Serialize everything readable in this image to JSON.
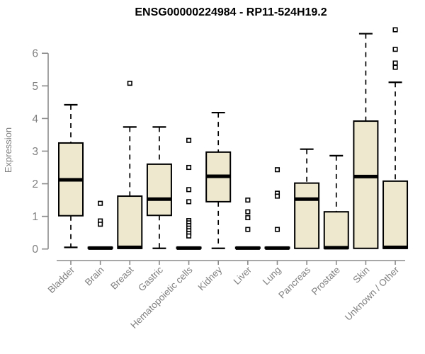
{
  "title": "ENSG00000224984 - RP11-524H19.2",
  "chart_data": {
    "type": "boxplot",
    "title": "ENSG00000224984 - RP11-524H19.2",
    "xlabel": "",
    "ylabel": "Expression",
    "ylim": [
      0,
      6.8
    ],
    "yticks": [
      0,
      1,
      2,
      3,
      4,
      5,
      6
    ],
    "grid": false,
    "legend": "none",
    "categories": [
      "Bladder",
      "Brain",
      "Breast",
      "Gastric",
      "Hematopoietic cells",
      "Kidney",
      "Liver",
      "Lung",
      "Pancreas",
      "Prostate",
      "Skin",
      "Unknown / Other"
    ],
    "boxes": [
      {
        "category": "Bladder",
        "low": 0.05,
        "q1": 1.02,
        "median": 2.12,
        "q3": 3.25,
        "high": 4.42,
        "outliers": []
      },
      {
        "category": "Brain",
        "low": 0.02,
        "q1": 0.02,
        "median": 0.03,
        "q3": 0.05,
        "high": 0.05,
        "outliers": [
          1.4,
          0.86,
          0.76
        ]
      },
      {
        "category": "Breast",
        "low": 0.02,
        "q1": 0.02,
        "median": 0.05,
        "q3": 1.62,
        "high": 3.74,
        "outliers": [
          5.08
        ]
      },
      {
        "category": "Gastric",
        "low": 0.02,
        "q1": 1.03,
        "median": 1.53,
        "q3": 2.6,
        "high": 3.74,
        "outliers": []
      },
      {
        "category": "Hematopoietic cells",
        "low": 0.02,
        "q1": 0.02,
        "median": 0.03,
        "q3": 0.05,
        "high": 0.05,
        "outliers": [
          3.33,
          2.5,
          1.82,
          1.45,
          0.87,
          0.8,
          0.72,
          0.64,
          0.56,
          0.48,
          0.4
        ]
      },
      {
        "category": "Kidney",
        "low": 0.02,
        "q1": 1.45,
        "median": 2.23,
        "q3": 2.97,
        "high": 4.18,
        "outliers": []
      },
      {
        "category": "Liver",
        "low": 0.02,
        "q1": 0.02,
        "median": 0.03,
        "q3": 0.05,
        "high": 0.05,
        "outliers": [
          1.5,
          1.14,
          0.96,
          0.6
        ]
      },
      {
        "category": "Lung",
        "low": 0.02,
        "q1": 0.02,
        "median": 0.03,
        "q3": 0.05,
        "high": 0.05,
        "outliers": [
          2.43,
          1.71,
          1.62,
          0.6
        ]
      },
      {
        "category": "Pancreas",
        "low": 0.02,
        "q1": 0.02,
        "median": 1.53,
        "q3": 2.02,
        "high": 3.06,
        "outliers": []
      },
      {
        "category": "Prostate",
        "low": 0.02,
        "q1": 0.02,
        "median": 0.04,
        "q3": 1.14,
        "high": 2.86,
        "outliers": []
      },
      {
        "category": "Skin",
        "low": 0.02,
        "q1": 0.02,
        "median": 2.22,
        "q3": 3.92,
        "high": 6.6,
        "outliers": []
      },
      {
        "category": "Unknown / Other",
        "low": 0.02,
        "q1": 0.02,
        "median": 0.05,
        "q3": 2.08,
        "high": 5.11,
        "outliers": [
          5.57,
          5.7,
          6.12,
          6.72
        ]
      }
    ],
    "colors": {
      "box_fill": "#EDE8CE",
      "box_stroke": "#000000",
      "median": "#000000",
      "whisker": "#000000",
      "axis": "#8a8a8a",
      "tick_label": "#808080",
      "title": "#000000",
      "background": "#ffffff"
    }
  }
}
